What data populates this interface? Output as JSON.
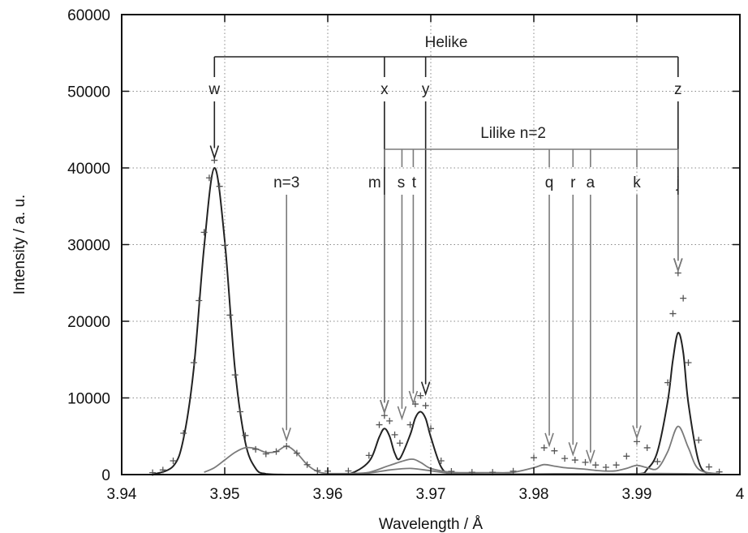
{
  "chart_data": {
    "type": "line",
    "xlabel": "Wavelength / Å",
    "ylabel": "Intensity / a. u.",
    "xlim": [
      3.94,
      4.0
    ],
    "ylim": [
      0,
      60000
    ],
    "grid": true,
    "x_ticks": [
      "3.94",
      "3.95",
      "3.96",
      "3.97",
      "3.98",
      "3.99",
      "4"
    ],
    "y_ticks": [
      "0",
      "10000",
      "20000",
      "30000",
      "40000",
      "50000",
      "60000"
    ],
    "colors": {
      "dark": "#222222",
      "gray": "#7a7a7a",
      "grid": "#888888"
    },
    "measured_data": {
      "marker": "+",
      "x": [
        3.943,
        3.944,
        3.945,
        3.946,
        3.947,
        3.9475,
        3.948,
        3.9485,
        3.949,
        3.9495,
        3.95,
        3.9505,
        3.951,
        3.9515,
        3.952,
        3.953,
        3.954,
        3.955,
        3.956,
        3.957,
        3.958,
        3.959,
        3.96,
        3.962,
        3.964,
        3.965,
        3.9655,
        3.966,
        3.9665,
        3.967,
        3.968,
        3.9685,
        3.969,
        3.9695,
        3.97,
        3.971,
        3.972,
        3.974,
        3.976,
        3.978,
        3.98,
        3.981,
        3.982,
        3.983,
        3.984,
        3.985,
        3.986,
        3.987,
        3.988,
        3.989,
        3.99,
        3.991,
        3.992,
        3.993,
        3.9935,
        3.994,
        3.9945,
        3.995,
        3.996,
        3.997,
        3.998
      ],
      "y": [
        250,
        600,
        1800,
        5400,
        14600,
        22700,
        31600,
        38700,
        41000,
        37600,
        29900,
        20800,
        13000,
        8200,
        5100,
        3300,
        2700,
        3000,
        3700,
        2800,
        1300,
        520,
        450,
        480,
        2500,
        6500,
        7700,
        7000,
        5200,
        4100,
        6500,
        9200,
        10300,
        9000,
        6000,
        1800,
        420,
        300,
        300,
        450,
        2200,
        3500,
        3100,
        2100,
        1900,
        1600,
        1250,
        950,
        1250,
        2400,
        4300,
        3500,
        1700,
        12000,
        21000,
        26300,
        23000,
        14600,
        4500,
        1000,
        350
      ]
    },
    "series": [
      {
        "color": "dark",
        "x": [
          3.943,
          3.945,
          3.946,
          3.947,
          3.948,
          3.949,
          3.95,
          3.951,
          3.952,
          3.953,
          3.954,
          3.956,
          3.958,
          3.96,
          3.962,
          3.964,
          3.965,
          3.9655,
          3.966,
          3.9665,
          3.967,
          3.968,
          3.9685,
          3.969,
          3.9695,
          3.97,
          3.971,
          3.972,
          3.974,
          3.976,
          3.98,
          3.985,
          3.99,
          3.991,
          3.992,
          3.993,
          3.9935,
          3.994,
          3.9945,
          3.995,
          3.996,
          3.997,
          3.998
        ],
        "y": [
          0,
          1100,
          4700,
          13900,
          29700,
          40000,
          30500,
          13700,
          4200,
          800,
          100,
          0,
          0,
          0,
          30,
          1700,
          4900,
          6000,
          5000,
          2800,
          2100,
          5200,
          7400,
          8200,
          7300,
          4900,
          1000,
          80,
          0,
          0,
          0,
          0,
          60,
          700,
          3000,
          9600,
          15000,
          18500,
          16000,
          9300,
          1700,
          100,
          0
        ]
      },
      {
        "color": "gray",
        "x": [
          3.948,
          3.949,
          3.95,
          3.951,
          3.952,
          3.953,
          3.954,
          3.955,
          3.956,
          3.957,
          3.958,
          3.959,
          3.96,
          3.962,
          3.964,
          3.966,
          3.968,
          3.969,
          3.97,
          3.972,
          3.974,
          3.976,
          3.978,
          3.98,
          3.981,
          3.982,
          3.983,
          3.984,
          3.985,
          3.986,
          3.987,
          3.988,
          3.989,
          3.99,
          3.991,
          3.992,
          3.993,
          3.994,
          3.995,
          3.996,
          3.998
        ],
        "y": [
          300,
          900,
          1900,
          2900,
          3500,
          3400,
          2900,
          3000,
          3700,
          2800,
          1300,
          400,
          150,
          150,
          300,
          1200,
          2000,
          1600,
          800,
          300,
          250,
          250,
          300,
          900,
          1300,
          1100,
          900,
          800,
          700,
          550,
          450,
          500,
          800,
          1200,
          900,
          800,
          3000,
          6300,
          3500,
          700,
          100
        ]
      },
      {
        "color": "gray",
        "x": [
          3.943,
          3.955,
          3.962,
          3.964,
          3.966,
          3.968,
          3.97,
          3.972,
          3.976,
          3.98,
          3.984,
          3.988,
          3.992,
          3.998
        ],
        "y": [
          0,
          0,
          0,
          200,
          600,
          800,
          500,
          150,
          50,
          100,
          120,
          100,
          150,
          50
        ]
      }
    ],
    "annotations": {
      "helike": {
        "label": "Helike",
        "lines": [
          {
            "label": "w",
            "x": 3.949,
            "arrow_y": 41000
          },
          {
            "label": "x",
            "x": 3.9655,
            "arrow_y": 7800
          },
          {
            "label": "y",
            "x": 3.9695,
            "arrow_y": 10200
          },
          {
            "label": "z",
            "x": 3.994,
            "arrow_y": 26300
          }
        ]
      },
      "lilike": {
        "label": "Lilike n=2",
        "lines": [
          {
            "label": "m",
            "x": 3.9655,
            "arrow_y": 7800
          },
          {
            "label": "s",
            "x": 3.9672,
            "arrow_y": 7000
          },
          {
            "label": "t",
            "x": 3.9683,
            "arrow_y": 9000
          },
          {
            "label": "q",
            "x": 3.9815,
            "arrow_y": 3500
          },
          {
            "label": "r",
            "x": 3.9838,
            "arrow_y": 2300
          },
          {
            "label": "a",
            "x": 3.9855,
            "arrow_y": 1300
          },
          {
            "label": "k",
            "x": 3.99,
            "arrow_y": 4500
          },
          {
            "label": "j",
            "x": 3.994,
            "arrow_y": 26300
          }
        ]
      },
      "n3": {
        "label": "n=3",
        "x": 3.956,
        "arrow_y": 4200
      }
    }
  }
}
